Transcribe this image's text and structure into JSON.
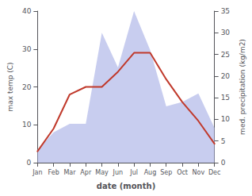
{
  "chart_data": {
    "type": "line",
    "categories": [
      "Jan",
      "Feb",
      "Mar",
      "Apr",
      "May",
      "Jun",
      "Jul",
      "Aug",
      "Sep",
      "Oct",
      "Nov",
      "Dec"
    ],
    "xlabel": "date (month)",
    "ylabel": "max temp (C)",
    "y2label": "med. precipitation (kg/m2)",
    "series": [
      {
        "type": "area",
        "axis": "y2",
        "color": "#b0b8e8",
        "values": [
          3,
          7,
          9,
          9,
          30,
          22,
          35,
          26,
          13,
          14,
          16,
          8
        ]
      },
      {
        "type": "line",
        "color": "#c0392b",
        "values": [
          3,
          9,
          18,
          20,
          20,
          24,
          29,
          29,
          22,
          16,
          11,
          5
        ]
      }
    ],
    "ylim": [
      0,
      40
    ],
    "yticks": [
      0,
      10,
      20,
      30,
      40
    ],
    "y2lim": [
      0,
      35
    ],
    "y2ticks": [
      0,
      5,
      10,
      15,
      20,
      25,
      30,
      35
    ],
    "grid": false
  }
}
